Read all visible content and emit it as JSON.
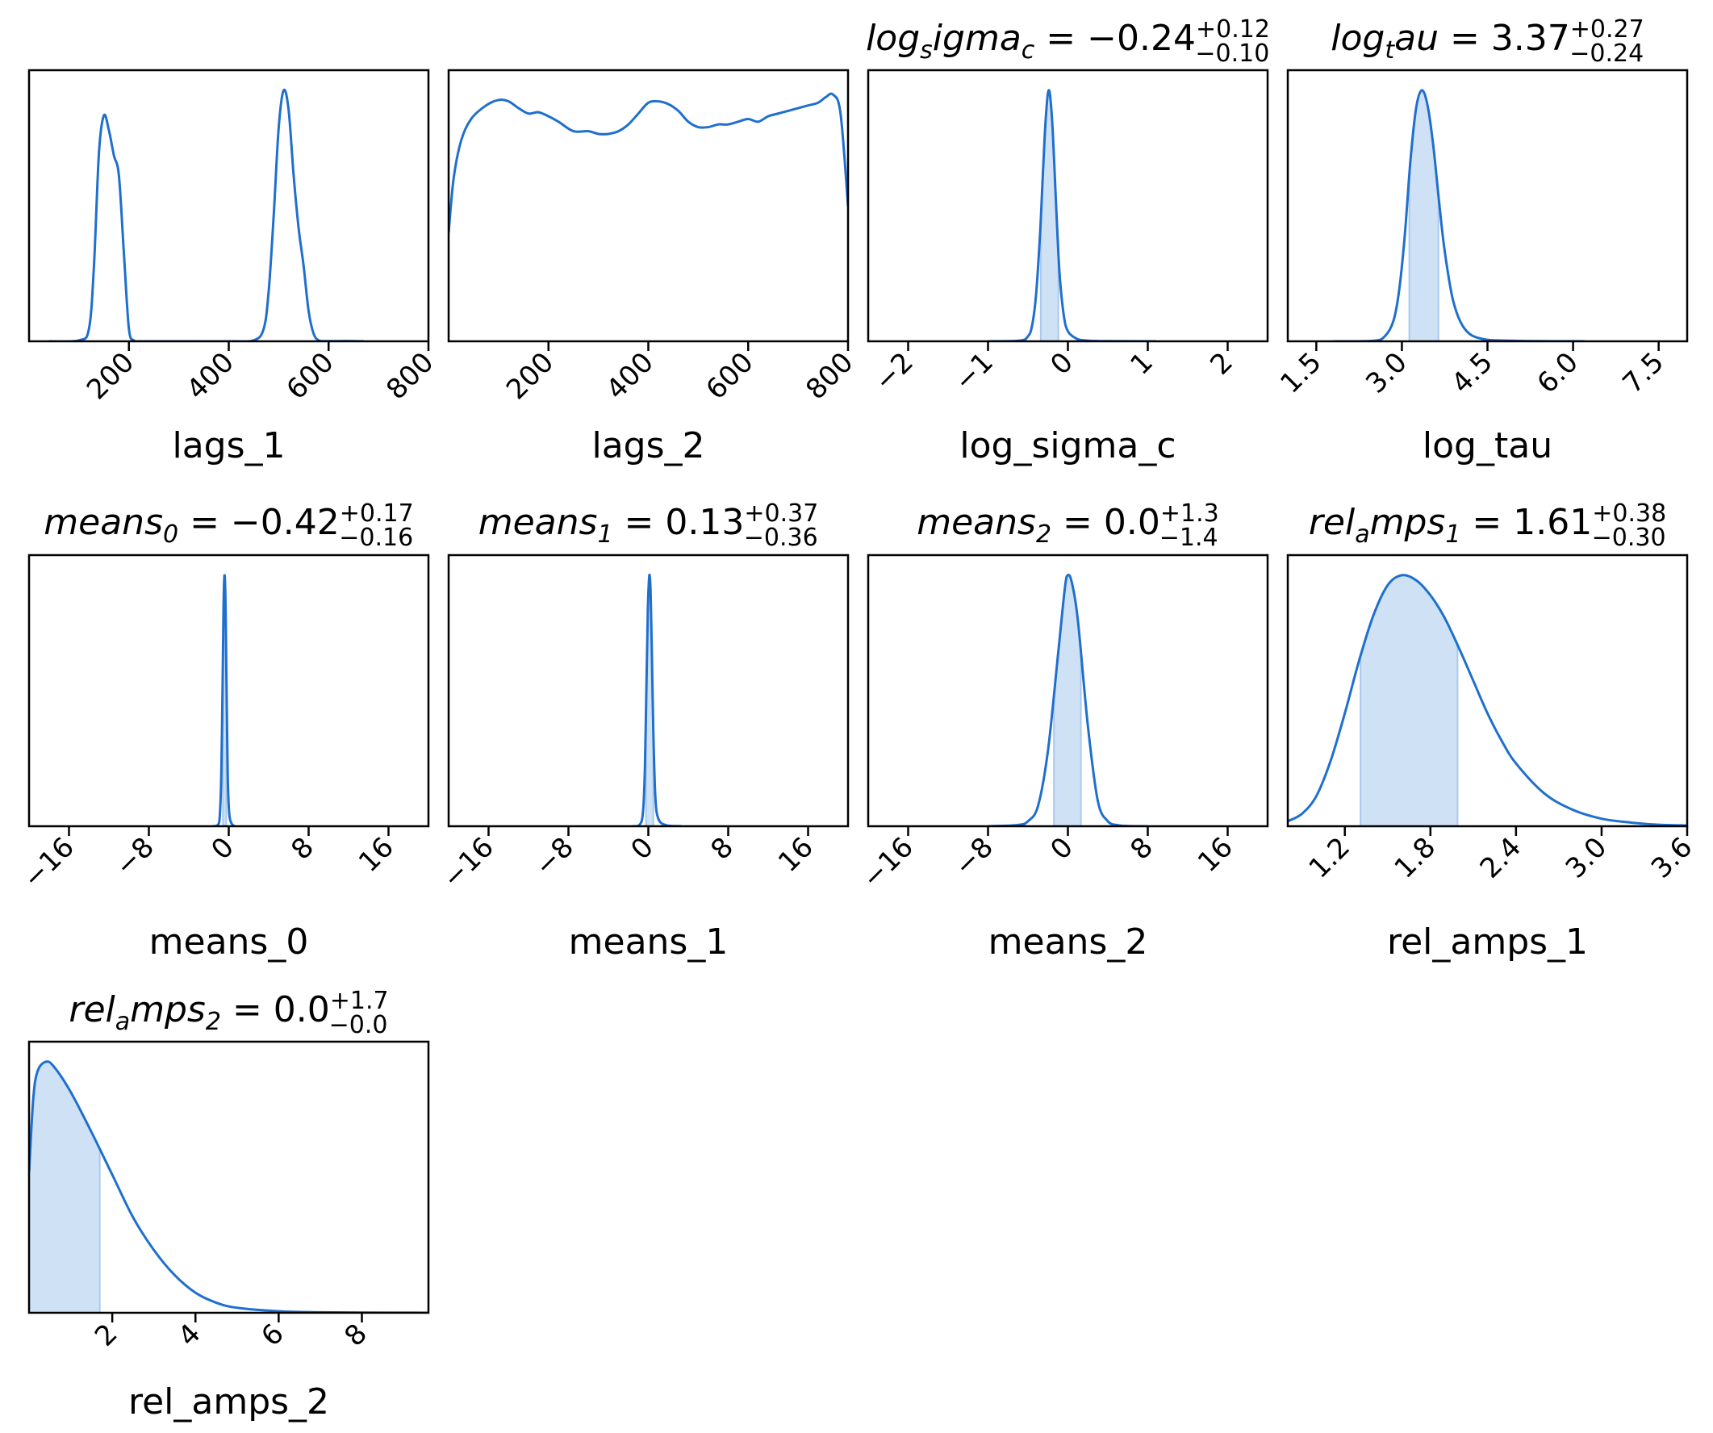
{
  "chart_data": [
    {
      "type": "area",
      "xlabel": "lags_1",
      "title": null,
      "ticks": [
        {
          "v": 200,
          "t": "200"
        },
        {
          "v": 400,
          "t": "400"
        },
        {
          "v": 600,
          "t": "600"
        },
        {
          "v": 800,
          "t": "800"
        }
      ],
      "xlim": [
        0,
        800
      ],
      "x": [
        40,
        100,
        120,
        130,
        140,
        150,
        160,
        170,
        180,
        190,
        200,
        210,
        220,
        250,
        300,
        400,
        450,
        470,
        480,
        490,
        500,
        510,
        520,
        530,
        540,
        550,
        560,
        570,
        580,
        590,
        600,
        620,
        650,
        670
      ],
      "y": [
        0,
        0.004,
        0.05,
        0.3,
        0.75,
        0.9,
        0.84,
        0.74,
        0.66,
        0.35,
        0.05,
        0.004,
        0,
        0,
        0,
        0,
        0.004,
        0.05,
        0.2,
        0.5,
        0.85,
        1.0,
        0.92,
        0.66,
        0.45,
        0.3,
        0.12,
        0.03,
        0.004,
        0.001,
        0.001,
        0.001,
        0.001,
        0
      ],
      "ymax": 1.08,
      "shade": null
    },
    {
      "type": "area",
      "xlabel": "lags_2",
      "title": null,
      "ticks": [
        {
          "v": 200,
          "t": "200"
        },
        {
          "v": 400,
          "t": "400"
        },
        {
          "v": 600,
          "t": "600"
        },
        {
          "v": 800,
          "t": "800"
        }
      ],
      "xlim": [
        0,
        800
      ],
      "x": [
        0,
        10,
        25,
        45,
        75,
        100,
        120,
        140,
        160,
        180,
        200,
        220,
        250,
        280,
        300,
        320,
        340,
        360,
        380,
        400,
        420,
        440,
        460,
        480,
        500,
        520,
        540,
        560,
        580,
        600,
        620,
        640,
        660,
        680,
        700,
        720,
        740,
        755,
        770,
        785,
        800
      ],
      "y": [
        0.4,
        0.6,
        0.74,
        0.82,
        0.87,
        0.89,
        0.885,
        0.86,
        0.84,
        0.845,
        0.83,
        0.81,
        0.775,
        0.775,
        0.765,
        0.765,
        0.775,
        0.8,
        0.84,
        0.88,
        0.885,
        0.875,
        0.85,
        0.81,
        0.79,
        0.79,
        0.8,
        0.8,
        0.81,
        0.82,
        0.81,
        0.83,
        0.84,
        0.85,
        0.86,
        0.87,
        0.88,
        0.9,
        0.91,
        0.84,
        0.5
      ],
      "ymax": 1.0,
      "shade": null
    },
    {
      "type": "area",
      "xlabel": "log_sigma_c",
      "title": {
        "sym": "log",
        "sub": "s",
        "rest": "igma",
        "sub2": "c",
        "value": " = −0.24",
        "sup": "+0.12",
        "subv": "−0.10"
      },
      "ticks": [
        {
          "v": -2,
          "t": "−2"
        },
        {
          "v": -1,
          "t": "−1"
        },
        {
          "v": 0,
          "t": "0"
        },
        {
          "v": 1,
          "t": "1"
        },
        {
          "v": 2,
          "t": "2"
        }
      ],
      "xlim": [
        -2.5,
        2.5
      ],
      "x": [
        -1.0,
        -0.6,
        -0.5,
        -0.45,
        -0.4,
        -0.35,
        -0.32,
        -0.29,
        -0.26,
        -0.24,
        -0.22,
        -0.19,
        -0.16,
        -0.13,
        -0.1,
        -0.05,
        0.0,
        0.1,
        0.2,
        0.4,
        1.1
      ],
      "y": [
        0,
        0.003,
        0.02,
        0.06,
        0.18,
        0.42,
        0.62,
        0.82,
        0.96,
        1.0,
        0.97,
        0.84,
        0.63,
        0.42,
        0.25,
        0.1,
        0.04,
        0.012,
        0.004,
        0.001,
        0
      ],
      "ymax": 1.08,
      "shade": [
        -0.34,
        -0.12
      ]
    },
    {
      "type": "area",
      "xlabel": "log_tau",
      "title": {
        "sym": "log",
        "sub": "t",
        "rest": "au",
        "sub2": null,
        "value": " = 3.37",
        "sup": "+0.27",
        "subv": "−0.24"
      },
      "ticks": [
        {
          "v": 1.5,
          "t": "1.5"
        },
        {
          "v": 3.0,
          "t": "3.0"
        },
        {
          "v": 4.5,
          "t": "4.5"
        },
        {
          "v": 6.0,
          "t": "6.0"
        },
        {
          "v": 7.5,
          "t": "7.5"
        }
      ],
      "xlim": [
        1.0,
        8.0
      ],
      "x": [
        1.8,
        2.5,
        2.7,
        2.85,
        2.95,
        3.05,
        3.15,
        3.25,
        3.35,
        3.45,
        3.55,
        3.65,
        3.75,
        3.9,
        4.1,
        4.4,
        5.0,
        6.2
      ],
      "y": [
        0,
        0.002,
        0.02,
        0.08,
        0.2,
        0.42,
        0.72,
        0.93,
        1.0,
        0.94,
        0.78,
        0.56,
        0.36,
        0.16,
        0.05,
        0.01,
        0.002,
        0
      ],
      "ymax": 1.08,
      "shade": [
        3.13,
        3.64
      ]
    },
    {
      "type": "area",
      "xlabel": "means_0",
      "title": {
        "sym": "means",
        "sub": "0",
        "rest": "",
        "sub2": null,
        "value": " = −0.42",
        "sup": "+0.17",
        "subv": "−0.16"
      },
      "ticks": [
        {
          "v": -16,
          "t": "−16"
        },
        {
          "v": -8,
          "t": "−8"
        },
        {
          "v": 0,
          "t": "0"
        },
        {
          "v": 8,
          "t": "8"
        },
        {
          "v": 16,
          "t": "16"
        }
      ],
      "xlim": [
        -20,
        20
      ],
      "x": [
        -1.6,
        -1.1,
        -0.9,
        -0.75,
        -0.62,
        -0.52,
        -0.42,
        -0.32,
        -0.22,
        -0.1,
        0.05,
        0.3,
        0.6
      ],
      "y": [
        0,
        0.005,
        0.04,
        0.2,
        0.55,
        0.88,
        1.0,
        0.88,
        0.55,
        0.2,
        0.05,
        0.01,
        0
      ],
      "ymax": 1.08,
      "shade": [
        -0.58,
        -0.25
      ]
    },
    {
      "type": "area",
      "xlabel": "means_1",
      "title": {
        "sym": "means",
        "sub": "1",
        "rest": "",
        "sub2": null,
        "value": " = 0.13",
        "sup": "+0.37",
        "subv": "−0.36"
      },
      "ticks": [
        {
          "v": -16,
          "t": "−16"
        },
        {
          "v": -8,
          "t": "−8"
        },
        {
          "v": 0,
          "t": "0"
        },
        {
          "v": 8,
          "t": "8"
        },
        {
          "v": 16,
          "t": "16"
        }
      ],
      "xlim": [
        -20,
        20
      ],
      "x": [
        -1.6,
        -0.9,
        -0.55,
        -0.35,
        -0.18,
        -0.05,
        0.05,
        0.13,
        0.23,
        0.35,
        0.5,
        0.7,
        1.0,
        1.8,
        3.3
      ],
      "y": [
        0,
        0.005,
        0.05,
        0.22,
        0.58,
        0.86,
        0.97,
        1.0,
        0.93,
        0.7,
        0.38,
        0.12,
        0.03,
        0.004,
        0
      ],
      "ymax": 1.08,
      "shade": [
        -0.23,
        0.5
      ]
    },
    {
      "type": "area",
      "xlabel": "means_2",
      "title": {
        "sym": "means",
        "sub": "2",
        "rest": "",
        "sub2": null,
        "value": " = 0.0",
        "sup": "+1.3",
        "subv": "−1.4"
      },
      "ticks": [
        {
          "v": -16,
          "t": "−16"
        },
        {
          "v": -8,
          "t": "−8"
        },
        {
          "v": 0,
          "t": "0"
        },
        {
          "v": 8,
          "t": "8"
        },
        {
          "v": 16,
          "t": "16"
        }
      ],
      "xlim": [
        -20,
        20
      ],
      "x": [
        -8,
        -5,
        -4,
        -3,
        -2,
        -1,
        -0.3,
        0,
        0.4,
        1,
        2,
        3,
        4,
        5,
        6,
        8
      ],
      "y": [
        0,
        0.005,
        0.02,
        0.08,
        0.3,
        0.68,
        0.95,
        1.0,
        0.97,
        0.82,
        0.4,
        0.1,
        0.02,
        0.004,
        0.001,
        0
      ],
      "ymax": 1.08,
      "shade": [
        -1.4,
        1.3
      ]
    },
    {
      "type": "area",
      "xlabel": "rel_amps_1",
      "title": {
        "sym": "rel",
        "sub": "a",
        "rest": "mps",
        "sub2": "1",
        "value": " = 1.61",
        "sup": "+0.38",
        "subv": "−0.30"
      },
      "ticks": [
        {
          "v": 1.2,
          "t": "1.2"
        },
        {
          "v": 1.8,
          "t": "1.8"
        },
        {
          "v": 2.4,
          "t": "2.4"
        },
        {
          "v": 3.0,
          "t": "3.0"
        },
        {
          "v": 3.6,
          "t": "3.6"
        }
      ],
      "xlim": [
        0.8,
        3.6
      ],
      "x": [
        0.8,
        0.9,
        1.0,
        1.1,
        1.2,
        1.3,
        1.4,
        1.5,
        1.6,
        1.7,
        1.8,
        1.9,
        2.0,
        2.1,
        2.2,
        2.3,
        2.4,
        2.6,
        2.8,
        3.0,
        3.2,
        3.4,
        3.6
      ],
      "y": [
        0.02,
        0.05,
        0.12,
        0.26,
        0.45,
        0.66,
        0.84,
        0.96,
        1.0,
        0.98,
        0.92,
        0.83,
        0.71,
        0.58,
        0.45,
        0.34,
        0.25,
        0.13,
        0.065,
        0.03,
        0.015,
        0.006,
        0.003
      ],
      "ymax": 1.08,
      "shade": [
        1.31,
        1.99
      ]
    },
    {
      "type": "area",
      "xlabel": "rel_amps_2",
      "title": {
        "sym": "rel",
        "sub": "a",
        "rest": "mps",
        "sub2": "2",
        "value": " = 0.0",
        "sup": "+1.7",
        "subv": "−0.0"
      },
      "ticks": [
        {
          "v": 2,
          "t": "2"
        },
        {
          "v": 4,
          "t": "4"
        },
        {
          "v": 6,
          "t": "6"
        },
        {
          "v": 8,
          "t": "8"
        }
      ],
      "xlim": [
        0,
        9.6
      ],
      "x": [
        0,
        0.1,
        0.2,
        0.4,
        0.6,
        1.0,
        1.5,
        2.0,
        2.5,
        3.0,
        3.5,
        4.0,
        4.5,
        5.0,
        6.0,
        7.0,
        8.0,
        9.6
      ],
      "y": [
        0.56,
        0.85,
        0.96,
        1.0,
        0.98,
        0.88,
        0.72,
        0.55,
        0.38,
        0.25,
        0.15,
        0.08,
        0.04,
        0.02,
        0.006,
        0.002,
        0.001,
        0
      ],
      "ymax": 1.08,
      "shade": [
        0,
        1.7
      ]
    }
  ],
  "colors": {
    "line": "#1f6fce",
    "fill": "#cfe1f5",
    "frame": "#000000"
  }
}
